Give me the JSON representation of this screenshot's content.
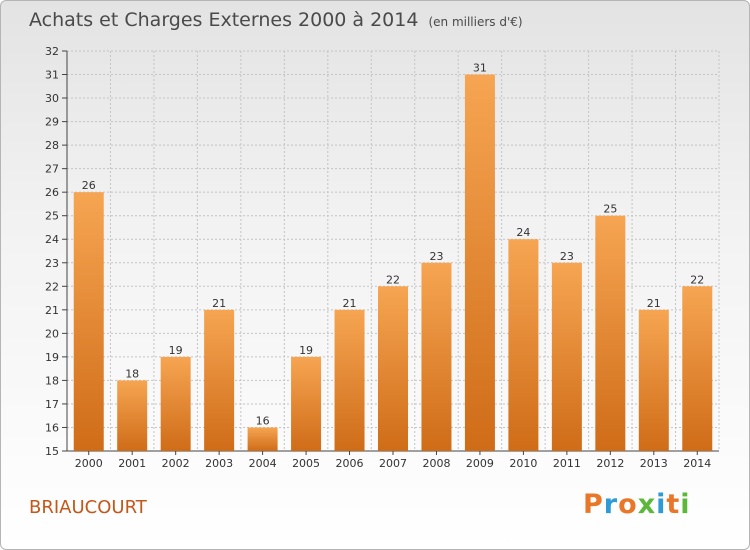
{
  "header": {
    "title": "Achats et Charges Externes 2000 à 2014",
    "subtitle": "(en milliers d'€)"
  },
  "footer": {
    "place": "BRIAUCOURT",
    "logo": "Proxiti"
  },
  "colors": {
    "bar_light": "#f6a552",
    "bar_dark": "#cf6c18",
    "logo_letters": [
      "#e8772a",
      "#2e9ad6",
      "#e8772a",
      "#5cb83a",
      "#2e9ad6",
      "#e8772a",
      "#5cb83a"
    ]
  },
  "chart_data": {
    "type": "bar",
    "title": "Achats et Charges Externes 2000 à 2014",
    "subtitle": "(en milliers d'€)",
    "categories": [
      "2000",
      "2001",
      "2002",
      "2003",
      "2004",
      "2005",
      "2006",
      "2007",
      "2008",
      "2009",
      "2010",
      "2011",
      "2012",
      "2013",
      "2014"
    ],
    "values": [
      26,
      18,
      19,
      21,
      16,
      19,
      21,
      22,
      23,
      31,
      24,
      23,
      25,
      21,
      22
    ],
    "ylim": [
      15,
      32
    ],
    "yticks": [
      15,
      16,
      17,
      18,
      19,
      20,
      21,
      22,
      23,
      24,
      25,
      26,
      27,
      28,
      29,
      30,
      31,
      32
    ],
    "grid": true,
    "legend": "none",
    "xlabel": "",
    "ylabel": ""
  }
}
